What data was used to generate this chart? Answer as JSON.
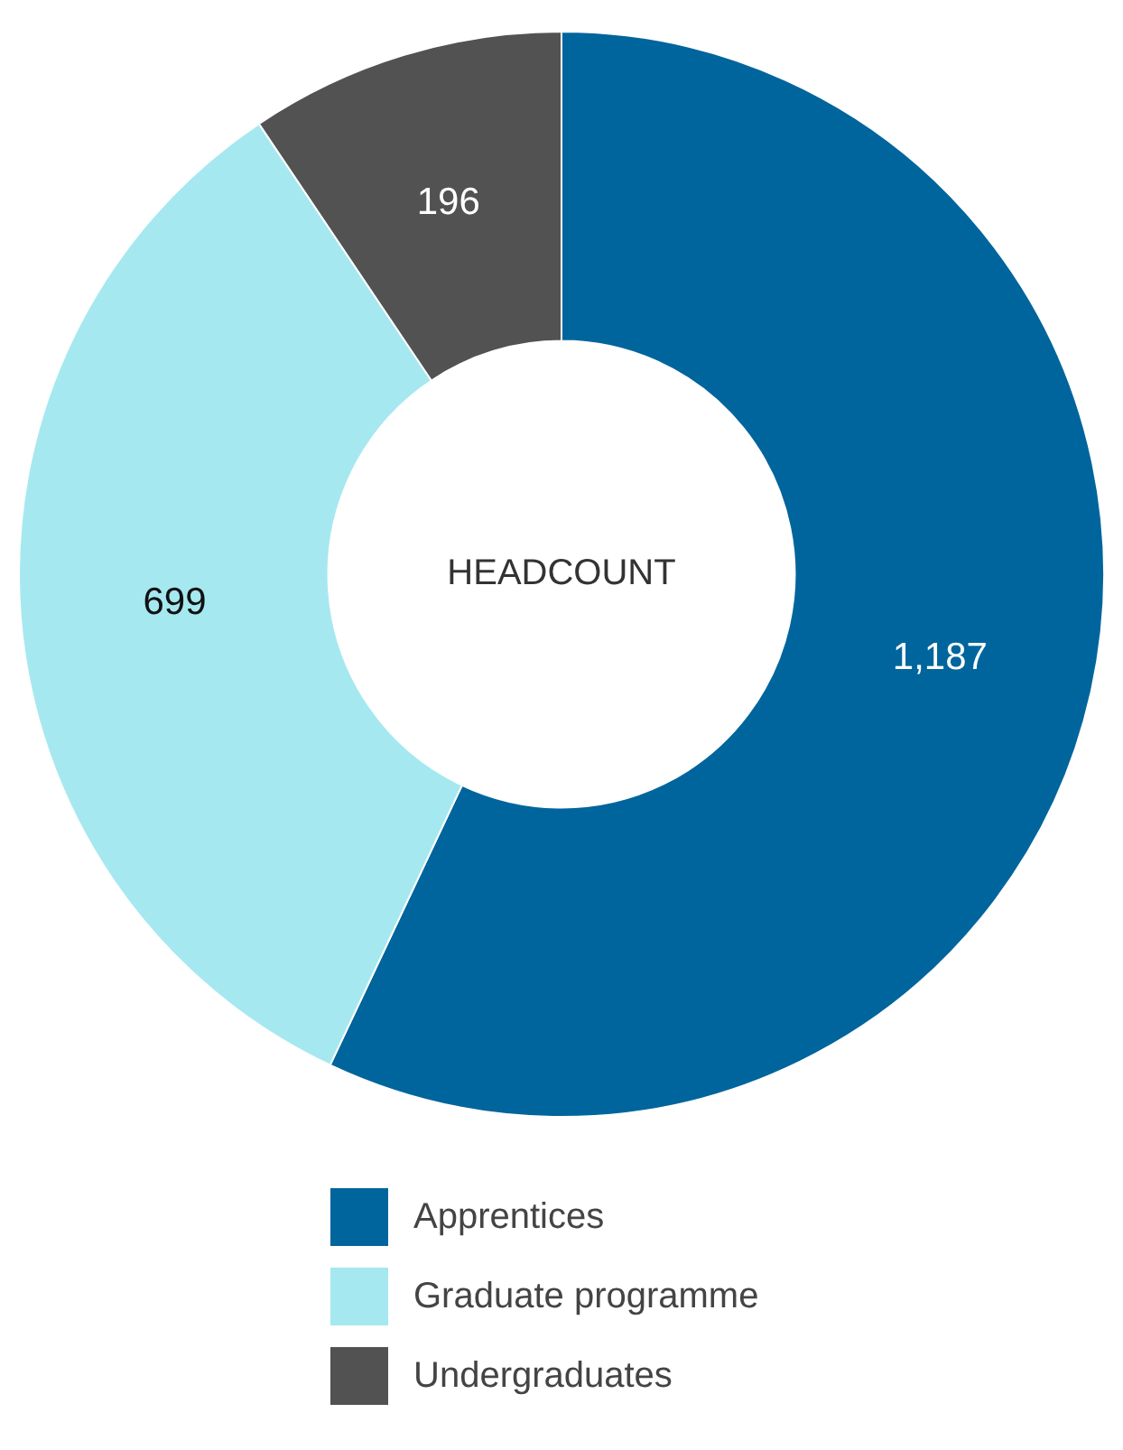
{
  "chart_data": {
    "type": "donut",
    "title": "HEADCOUNT",
    "categories": [
      "Apprentices",
      "Graduate programme",
      "Undergraduates"
    ],
    "values": [
      1187,
      699,
      196
    ],
    "colors": [
      "#00659c",
      "#a6e8f0",
      "#525252"
    ],
    "value_labels": [
      "1,187",
      "699",
      "196"
    ],
    "legend": "bottom"
  }
}
